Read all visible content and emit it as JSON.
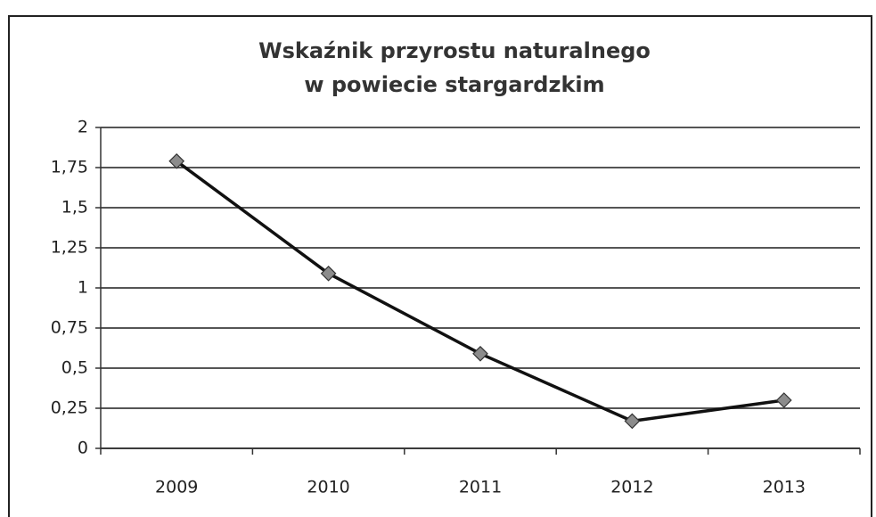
{
  "chart_data": {
    "type": "line",
    "title": [
      "Wskaźnik przyrostu naturalnego",
      "w powiecie stargardzkim"
    ],
    "categories": [
      "2009",
      "2010",
      "2011",
      "2012",
      "2013"
    ],
    "series": [
      {
        "name": "Wskaźnik",
        "color": "#111111",
        "values": [
          1.79,
          1.09,
          0.59,
          0.17,
          0.3
        ]
      }
    ],
    "marker_color": "#8c8c8c",
    "ylim": [
      0,
      2
    ],
    "yticks": [
      0,
      {
        "value": 0.25,
        "label": "0,25"
      },
      {
        "value": 0.5,
        "label": "0,5"
      },
      {
        "value": 0.75,
        "label": "0,75"
      },
      1,
      {
        "value": 1.25,
        "label": "1,25"
      },
      {
        "value": 1.5,
        "label": "1,5"
      },
      {
        "value": 1.75,
        "label": "1,75"
      },
      2
    ],
    "grid": true
  }
}
